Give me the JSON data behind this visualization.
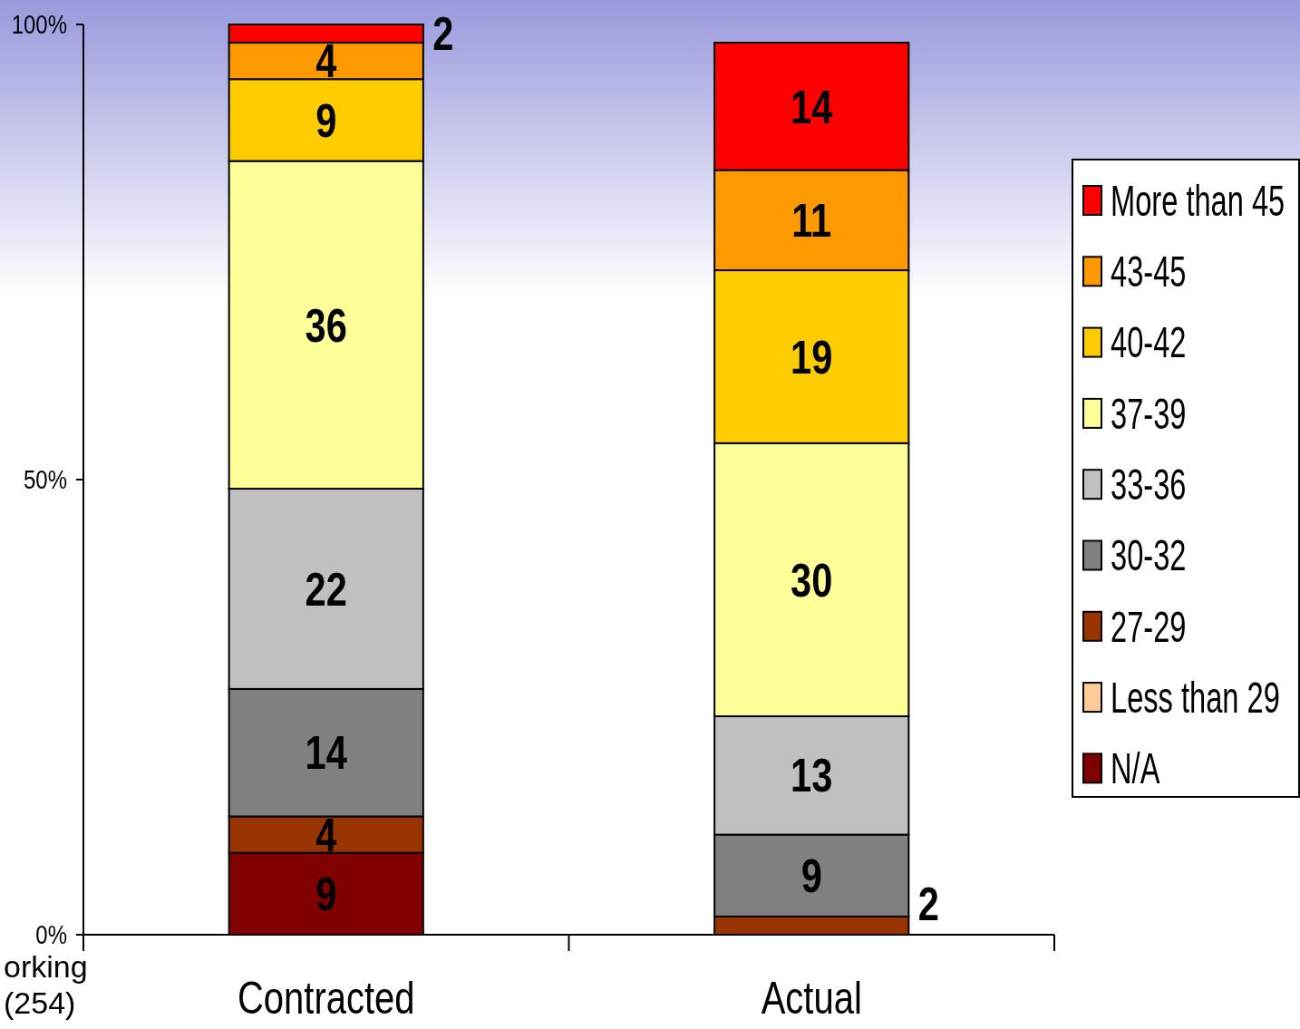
{
  "chart_data": {
    "type": "bar",
    "stacked": true,
    "categories": [
      "Contracted",
      "Actual"
    ],
    "series": [
      {
        "name": "N/A",
        "color": "#800000",
        "values": [
          9,
          null
        ]
      },
      {
        "name": "Less than 29",
        "color": "#ffcc99",
        "values": [
          null,
          null
        ]
      },
      {
        "name": "27-29",
        "color": "#993300",
        "values": [
          4,
          2
        ]
      },
      {
        "name": "30-32",
        "color": "#808080",
        "values": [
          14,
          9
        ]
      },
      {
        "name": "33-36",
        "color": "#c0c0c0",
        "values": [
          22,
          13
        ]
      },
      {
        "name": "37-39",
        "color": "#ffff99",
        "values": [
          36,
          30
        ]
      },
      {
        "name": "40-42",
        "color": "#ffcc00",
        "values": [
          9,
          19
        ]
      },
      {
        "name": "43-45",
        "color": "#ff9900",
        "values": [
          4,
          11
        ]
      },
      {
        "name": "More than 45",
        "color": "#ff0000",
        "values": [
          2,
          14
        ]
      }
    ],
    "ylim": [
      0,
      100
    ],
    "yticks": [
      {
        "value": 0,
        "label": "0%"
      },
      {
        "value": 50,
        "label": "50%"
      },
      {
        "value": 100,
        "label": "100%"
      }
    ],
    "data_labels": true,
    "legend": "right",
    "grid": false,
    "annotations": [
      "orking\n(254)"
    ]
  }
}
